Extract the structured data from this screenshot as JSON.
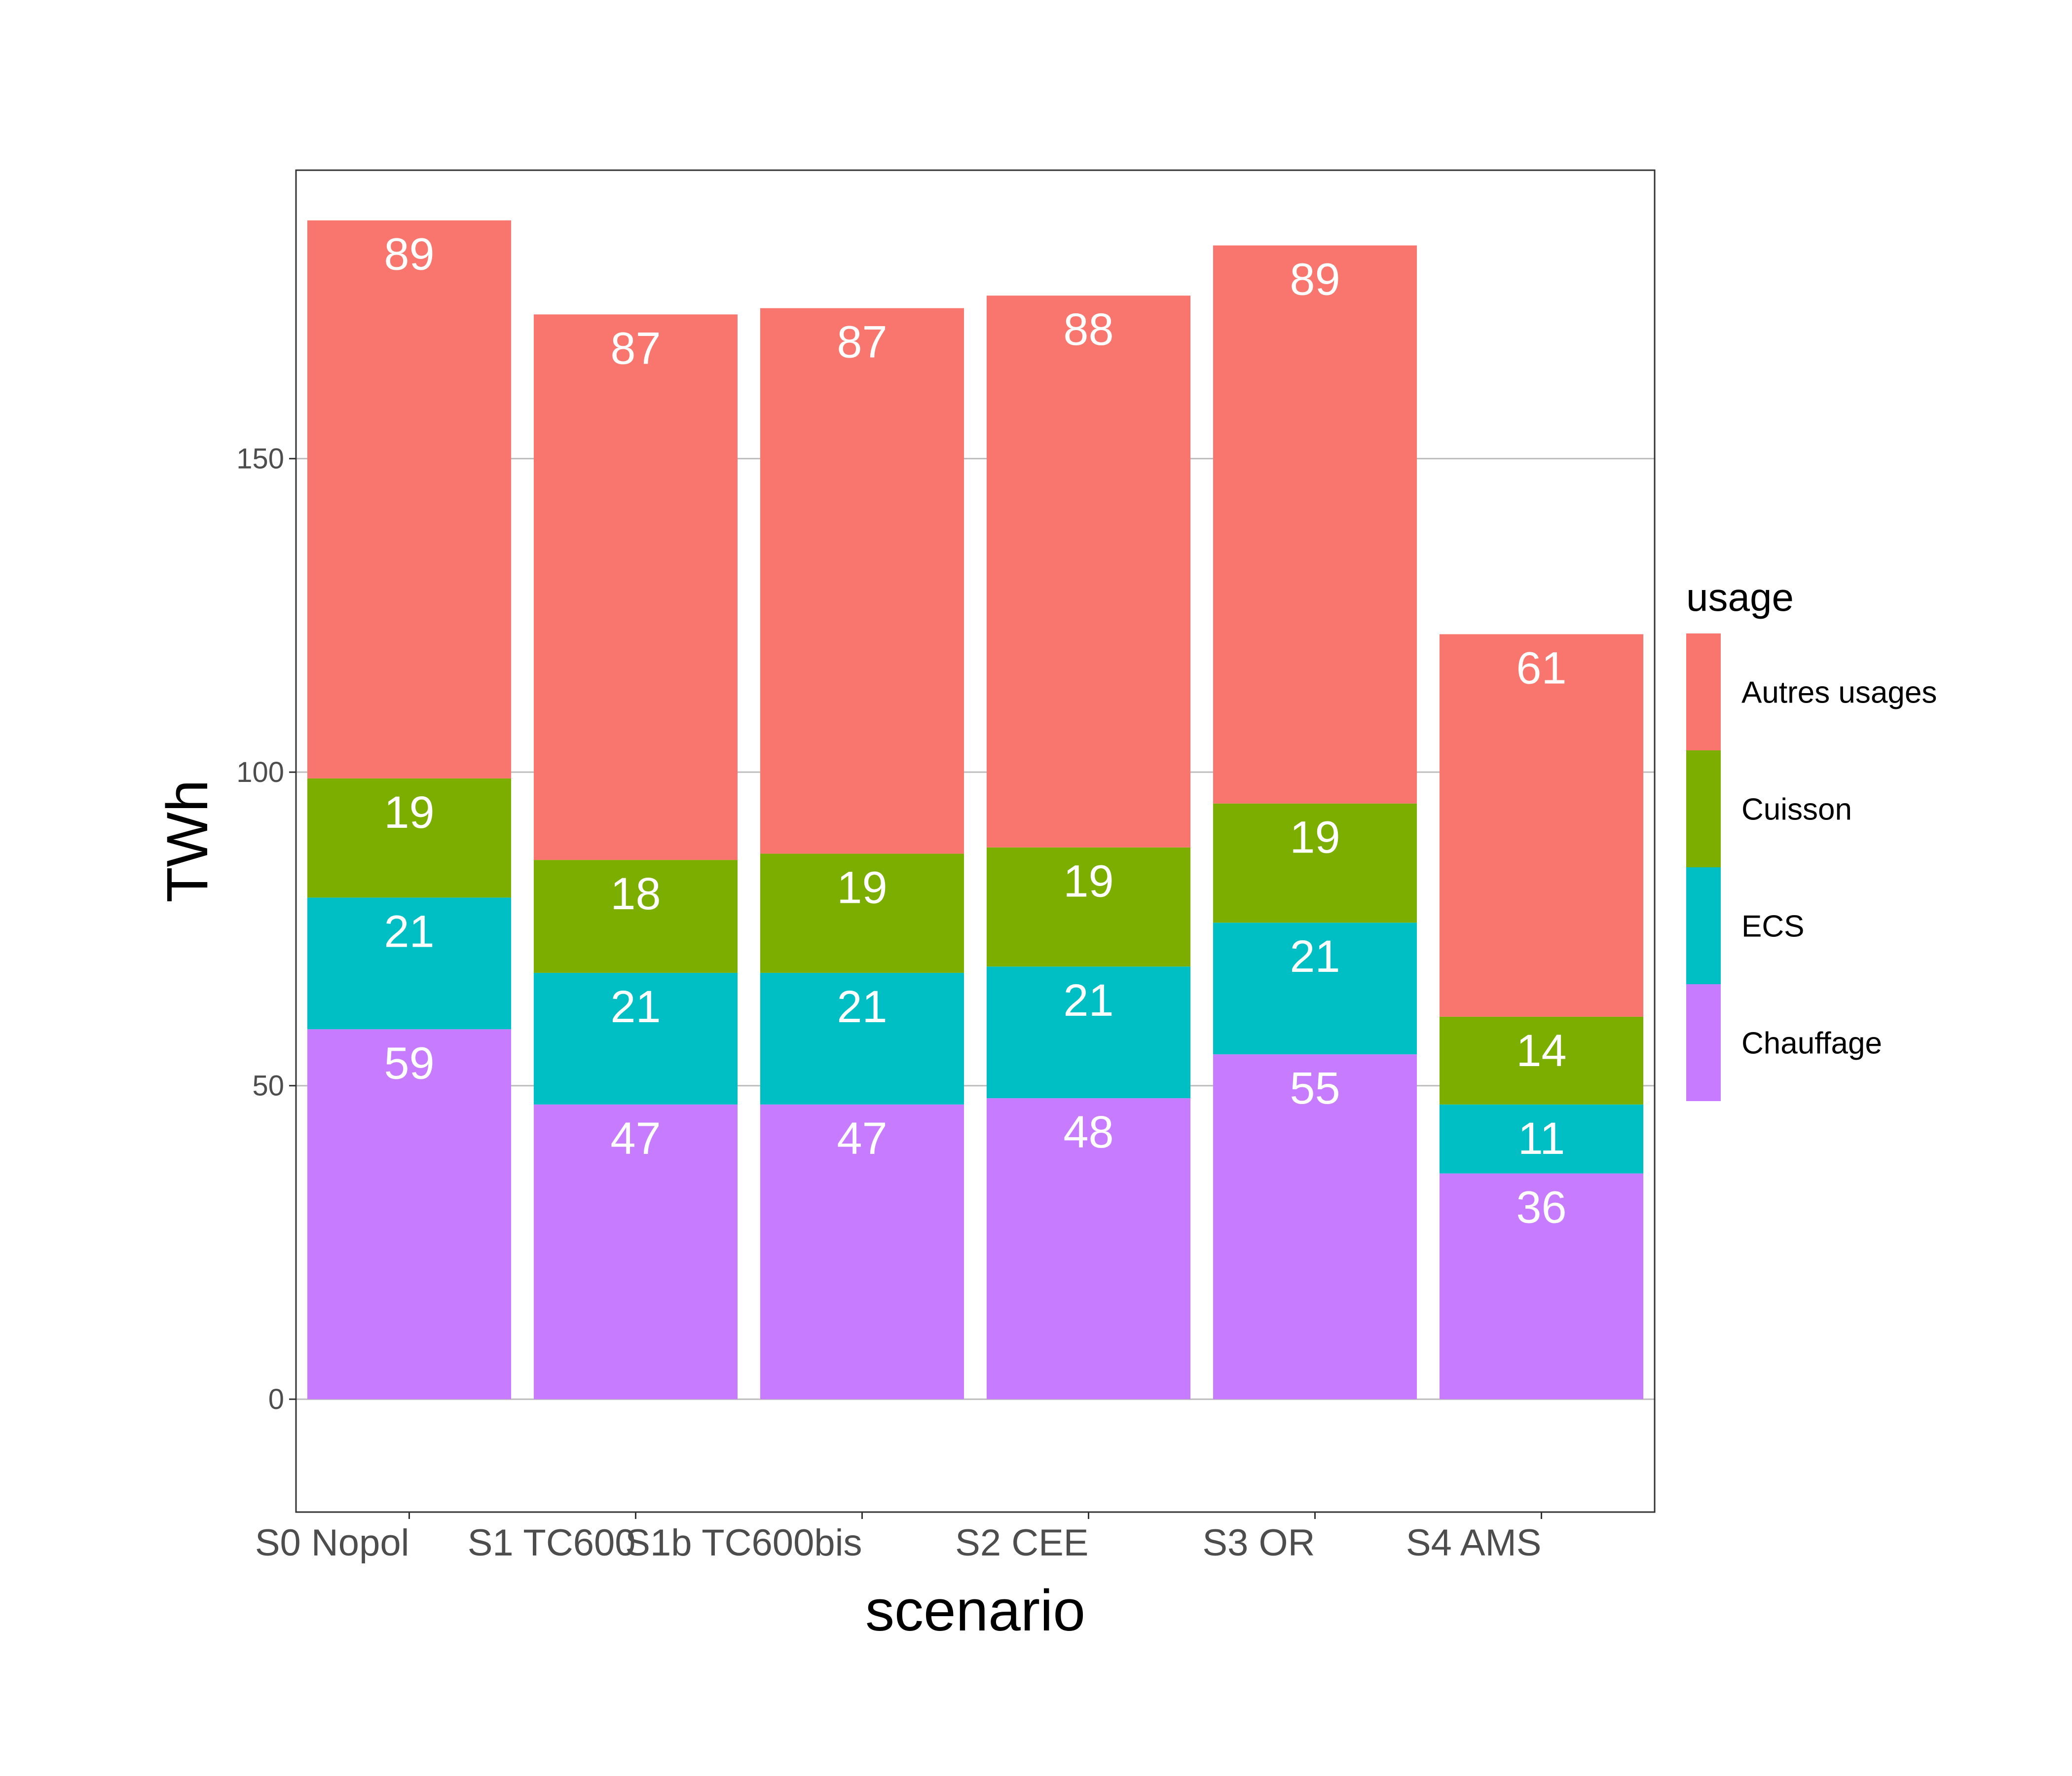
{
  "chart_data": {
    "type": "bar",
    "stacked": true,
    "title": "",
    "xlabel": "scenario",
    "ylabel": "TWh",
    "categories": [
      "S0 Nopol",
      "S1 TC600",
      "S1b TC600bis",
      "S2 CEE",
      "S3 OR",
      "S4 AMS"
    ],
    "ylim": [
      -18,
      196
    ],
    "yticks": [
      0,
      50,
      100,
      150
    ],
    "grid": true,
    "legend": {
      "title": "usage",
      "position": "right"
    },
    "series": [
      {
        "name": "Chauffage",
        "color": "#C77CFF",
        "values": [
          59,
          47,
          47,
          48,
          55,
          36
        ],
        "labels": [
          "59",
          "47",
          "47",
          "48",
          "55",
          "36"
        ]
      },
      {
        "name": "ECS",
        "color": "#00BFC4",
        "values": [
          21,
          21,
          21,
          21,
          21,
          11
        ],
        "labels": [
          "21",
          "21",
          "21",
          "21",
          "21",
          "11"
        ]
      },
      {
        "name": "Cuisson",
        "color": "#7CAE00",
        "values": [
          19,
          18,
          19,
          19,
          19,
          14
        ],
        "labels": [
          "19",
          "18",
          "19",
          "19",
          "19",
          "14"
        ]
      },
      {
        "name": "Autres usages",
        "color": "#F8766D",
        "values": [
          89,
          87,
          87,
          88,
          89,
          61
        ],
        "labels": [
          "89",
          "87",
          "87",
          "88",
          "89",
          "61"
        ]
      }
    ],
    "legend_order": [
      "Autres usages",
      "Cuisson",
      "ECS",
      "Chauffage"
    ]
  }
}
